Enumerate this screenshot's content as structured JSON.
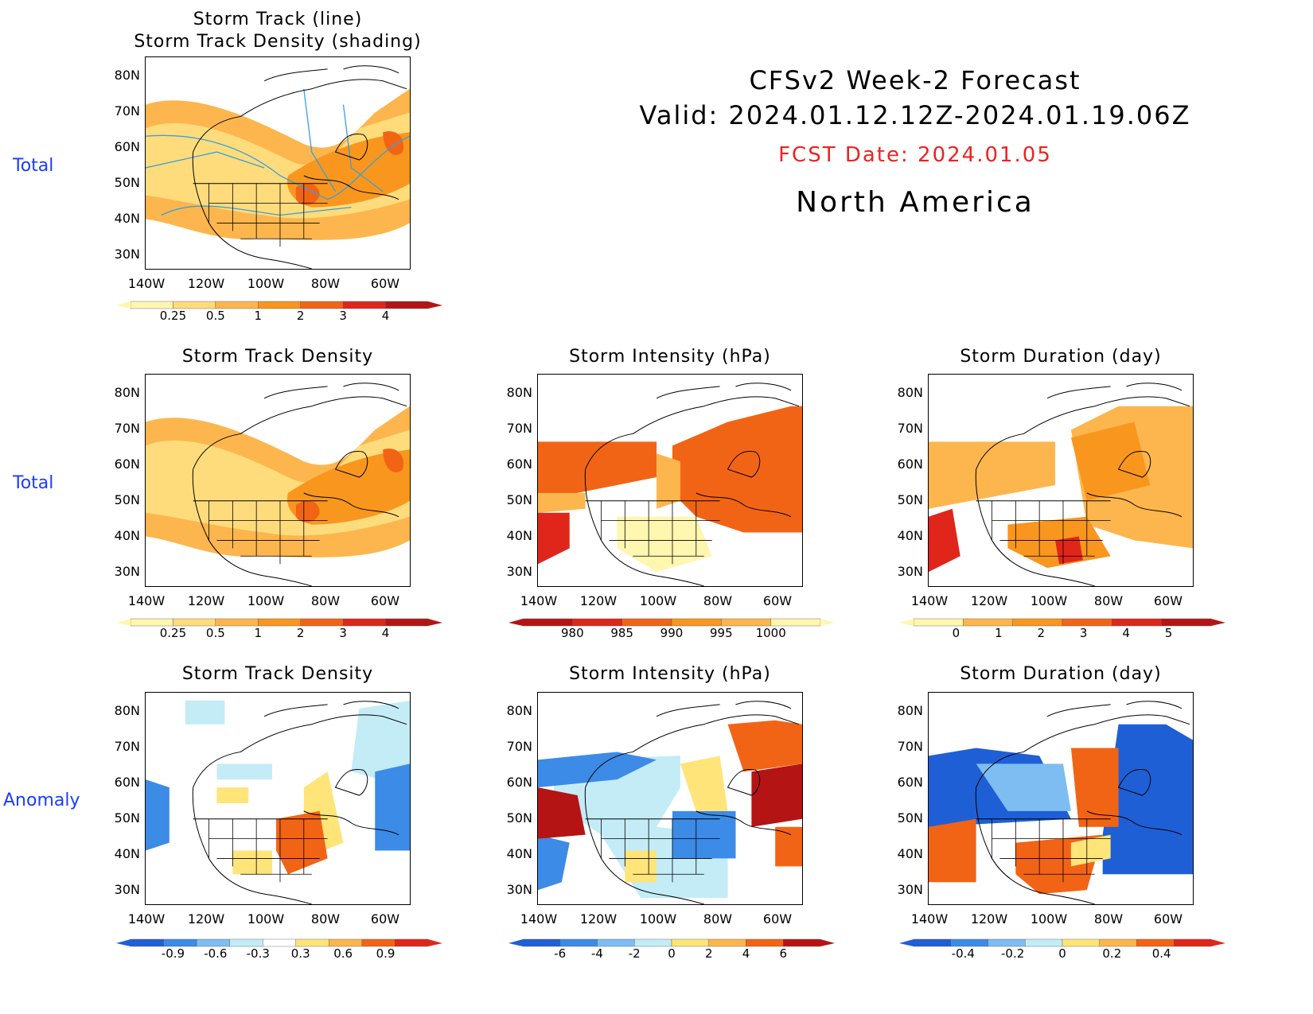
{
  "header": {
    "title": "CFSv2 Week-2 Forecast",
    "valid": "Valid: 2024.01.12.12Z-2024.01.19.06Z",
    "fcst_date": "FCST Date: 2024.01.05",
    "region": "North America",
    "fcst_color": "#ee2222"
  },
  "row_labels": [
    "Total",
    "Total",
    "Anomaly"
  ],
  "row_label_color": "#1a3cff",
  "axes": {
    "lat_ticks": [
      "80N",
      "70N",
      "60N",
      "50N",
      "40N",
      "30N"
    ],
    "lon_ticks": [
      "140W",
      "120W",
      "100W",
      "80W",
      "60W"
    ]
  },
  "panels": [
    {
      "id": "track-line-density",
      "title_lines": [
        "Storm Track (line)",
        "Storm Track Density (shading)"
      ],
      "colorbar": {
        "labels": [
          "0.25",
          "0.5",
          "1",
          "2",
          "3",
          "4"
        ],
        "colors": [
          "#fff6b0",
          "#fedc7c",
          "#fdb64d",
          "#f9961e",
          "#f26415",
          "#e0261b",
          "#b51414"
        ]
      }
    },
    {
      "id": "density-total",
      "title_lines": [
        "Storm Track Density"
      ],
      "colorbar": {
        "labels": [
          "0.25",
          "0.5",
          "1",
          "2",
          "3",
          "4"
        ],
        "colors": [
          "#fff6b0",
          "#fedc7c",
          "#fdb64d",
          "#f9961e",
          "#f26415",
          "#e0261b",
          "#b51414"
        ]
      }
    },
    {
      "id": "intensity-total",
      "title_lines": [
        "Storm Intensity (hPa)"
      ],
      "colorbar": {
        "labels": [
          "980",
          "985",
          "990",
          "995",
          "1000"
        ],
        "colors": [
          "#b51414",
          "#e0261b",
          "#f26415",
          "#f9961e",
          "#fdb64d",
          "#fff6b0"
        ]
      }
    },
    {
      "id": "duration-total",
      "title_lines": [
        "Storm Duration (day)"
      ],
      "colorbar": {
        "labels": [
          "0",
          "1",
          "2",
          "3",
          "4",
          "5"
        ],
        "colors": [
          "#fff6b0",
          "#fdb64d",
          "#f9961e",
          "#f26415",
          "#e0261b",
          "#b51414"
        ]
      }
    },
    {
      "id": "density-anomaly",
      "title_lines": [
        "Storm Track Density"
      ],
      "colorbar": {
        "labels": [
          "-0.9",
          "-0.6",
          "-0.3",
          "0.3",
          "0.6",
          "0.9"
        ],
        "colors": [
          "#1f5fd6",
          "#3c8be6",
          "#7dbdf2",
          "#c3ecf7",
          "#ffffff",
          "#ffe47a",
          "#fdb64d",
          "#f26415",
          "#e0261b"
        ]
      }
    },
    {
      "id": "intensity-anomaly",
      "title_lines": [
        "Storm Intensity (hPa)"
      ],
      "colorbar": {
        "labels": [
          "-6",
          "-4",
          "-2",
          "0",
          "2",
          "4",
          "6"
        ],
        "colors": [
          "#1f5fd6",
          "#3c8be6",
          "#7dbdf2",
          "#c3ecf7",
          "#ffe47a",
          "#fdb64d",
          "#f26415",
          "#b51414"
        ]
      }
    },
    {
      "id": "duration-anomaly",
      "title_lines": [
        "Storm Duration (day)"
      ],
      "colorbar": {
        "labels": [
          "-0.4",
          "-0.2",
          "0",
          "0.2",
          "0.4"
        ],
        "colors": [
          "#1f5fd6",
          "#3c8be6",
          "#7dbdf2",
          "#c3ecf7",
          "#ffe47a",
          "#fdb64d",
          "#f26415",
          "#e0261b"
        ]
      }
    }
  ]
}
